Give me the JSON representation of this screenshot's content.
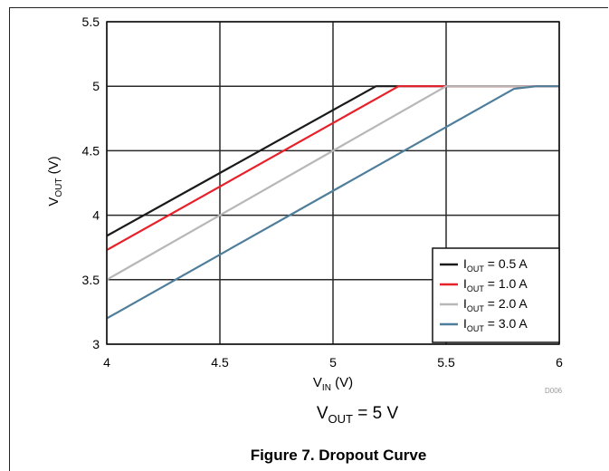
{
  "chart_data": {
    "type": "line",
    "title": "Figure 7. Dropout Curve",
    "condition": {
      "main": "V",
      "sub": "OUT",
      "suffix": " = 5 V"
    },
    "xlabel": {
      "main": "V",
      "sub": "IN",
      "suffix": " (V)"
    },
    "ylabel": {
      "main": "V",
      "sub": "OUT",
      "suffix": " (V)"
    },
    "xlim": [
      4,
      6
    ],
    "ylim": [
      3,
      5.5
    ],
    "x_ticks": [
      "4",
      "4.5",
      "5",
      "5.5",
      "6"
    ],
    "y_ticks": [
      "3",
      "3.5",
      "4",
      "4.5",
      "5",
      "5.5"
    ],
    "grid": true,
    "legend_position": "bottom-right",
    "figure_code": "D006",
    "series": [
      {
        "name_main": "I",
        "name_sub": "OUT",
        "name_suffix": " = 0.5 A",
        "color": "#1a1a1a",
        "points": [
          [
            4,
            3.84
          ],
          [
            5.19,
            5.0
          ],
          [
            6,
            5.0
          ]
        ]
      },
      {
        "name_main": "I",
        "name_sub": "OUT",
        "name_suffix": " = 1.0 A",
        "color": "#e8202a",
        "points": [
          [
            4,
            3.73
          ],
          [
            5.29,
            5.0
          ],
          [
            6,
            5.0
          ]
        ]
      },
      {
        "name_main": "I",
        "name_sub": "OUT",
        "name_suffix": " = 2.0 A",
        "color": "#b7b7b7",
        "points": [
          [
            4,
            3.5
          ],
          [
            5.5,
            5.0
          ],
          [
            6,
            5.0
          ]
        ]
      },
      {
        "name_main": "I",
        "name_sub": "OUT",
        "name_suffix": " = 3.0 A",
        "color": "#4f7e9b",
        "points": [
          [
            4,
            3.2
          ],
          [
            5.8,
            4.98
          ],
          [
            5.9,
            5.0
          ],
          [
            6,
            5.0
          ]
        ]
      }
    ]
  }
}
